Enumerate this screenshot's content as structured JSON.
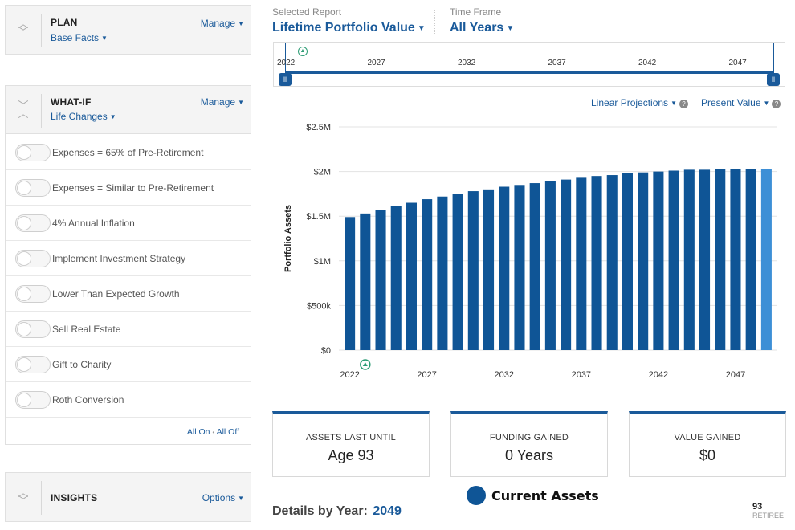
{
  "plan": {
    "title": "PLAN",
    "subtitle": "Base Facts",
    "manage": "Manage"
  },
  "whatif": {
    "title": "WHAT-IF",
    "subtitle": "Life Changes",
    "manage": "Manage",
    "toggles": [
      "Expenses = 65% of Pre-Retirement",
      "Expenses = Similar to Pre-Retirement",
      "4% Annual Inflation",
      "Implement Investment Strategy",
      "Lower Than Expected Growth",
      "Sell Real Estate",
      "Gift to Charity",
      "Roth Conversion"
    ],
    "all_on": "All On",
    "separator": "•",
    "all_off": "All Off"
  },
  "insights": {
    "title": "INSIGHTS",
    "options": "Options"
  },
  "report": {
    "selected_label": "Selected Report",
    "selected_value": "Lifetime Portfolio Value",
    "timeframe_label": "Time Frame",
    "timeframe_value": "All Years"
  },
  "timeline": {
    "ticks": [
      "2022",
      "2027",
      "2032",
      "2037",
      "2042",
      "2047"
    ]
  },
  "controls": {
    "projection": "Linear Projections",
    "value_mode": "Present Value"
  },
  "chart_data": {
    "type": "bar",
    "ylabel": "Portfolio Assets",
    "y_ticks": [
      "$0",
      "$500k",
      "$1M",
      "$1.5M",
      "$2M",
      "$2.5M"
    ],
    "x_ticks": [
      "2022",
      "2027",
      "2032",
      "2037",
      "2042",
      "2047"
    ],
    "ylim": [
      0,
      2500000
    ],
    "grid": true,
    "x": [
      2022,
      2023,
      2024,
      2025,
      2026,
      2027,
      2028,
      2029,
      2030,
      2031,
      2032,
      2033,
      2034,
      2035,
      2036,
      2037,
      2038,
      2039,
      2040,
      2041,
      2042,
      2043,
      2044,
      2045,
      2046,
      2047,
      2048,
      2049
    ],
    "values": [
      1490000,
      1530000,
      1570000,
      1610000,
      1650000,
      1690000,
      1720000,
      1750000,
      1780000,
      1800000,
      1830000,
      1850000,
      1870000,
      1890000,
      1910000,
      1930000,
      1950000,
      1960000,
      1980000,
      1990000,
      2000000,
      2010000,
      2020000,
      2020000,
      2030000,
      2030000,
      2030000,
      2030000
    ],
    "highlight_index": 27,
    "colors": {
      "bar": "#0f5596",
      "highlight": "#3d8fd6"
    },
    "legend": "Current Assets"
  },
  "cards": [
    {
      "label": "ASSETS LAST UNTIL",
      "value": "Age 93"
    },
    {
      "label": "FUNDING GAINED",
      "value": "0 Years"
    },
    {
      "label": "VALUE GAINED",
      "value": "$0"
    }
  ],
  "details": {
    "label": "Details by Year:",
    "year": "2049"
  },
  "retiree": {
    "age": "93",
    "label": "RETIREE"
  }
}
